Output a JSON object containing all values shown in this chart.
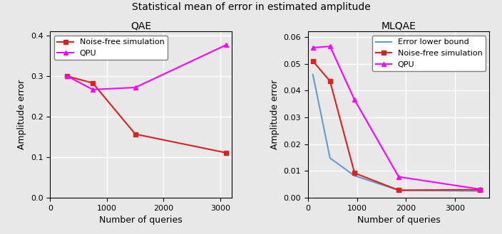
{
  "suptitle": "Statistical mean of error in estimated amplitude",
  "suptitle_fontsize": 10,
  "qae": {
    "title": "QAE",
    "xlabel": "Number of queries",
    "ylabel": "Amplitude error",
    "ylim": [
      0,
      0.41
    ],
    "xlim": [
      0,
      3200
    ],
    "yticks": [
      0.0,
      0.1,
      0.2,
      0.3,
      0.4
    ],
    "xticks": [
      0,
      1000,
      2000,
      3000
    ],
    "noise_free": {
      "x": [
        300,
        750,
        1500,
        3100
      ],
      "y": [
        0.3,
        0.283,
        0.157,
        0.111
      ],
      "color": "#dd2020",
      "marker": "s",
      "label": "Noise-free simulation"
    },
    "qpu": {
      "x": [
        300,
        750,
        1500,
        3100
      ],
      "y": [
        0.3,
        0.267,
        0.272,
        0.377
      ],
      "color": "#ff00ff",
      "marker": "^",
      "label": "QPU"
    }
  },
  "mlqae": {
    "title": "MLQAE",
    "xlabel": "Number of queries",
    "ylabel": "Amplitude error",
    "ylim": [
      0.0,
      0.062
    ],
    "xlim": [
      0,
      3700
    ],
    "yticks": [
      0.0,
      0.01,
      0.02,
      0.03,
      0.04,
      0.05,
      0.06
    ],
    "xticks": [
      0,
      1000,
      2000,
      3000
    ],
    "error_lb": {
      "x": [
        100,
        450,
        950,
        1850,
        3500
      ],
      "y": [
        0.046,
        0.0148,
        0.0082,
        0.0028,
        0.0025
      ],
      "color": "#6699cc",
      "label": "Error lower bound"
    },
    "noise_free": {
      "x": [
        100,
        450,
        950,
        1850,
        3500
      ],
      "y": [
        0.051,
        0.0435,
        0.0092,
        0.0028,
        0.003
      ],
      "color": "#dd2020",
      "marker": "s",
      "label": "Noise-free simulation"
    },
    "qpu": {
      "x": [
        100,
        450,
        950,
        1850,
        3500
      ],
      "y": [
        0.056,
        0.0565,
        0.0365,
        0.0078,
        0.0032
      ],
      "color": "#ff00ff",
      "marker": "^",
      "label": "QPU"
    }
  },
  "background_color": "#e8e8e8",
  "plot_bg_color": "#e8e8e8",
  "grid_color": "#ffffff",
  "grid_lw": 1.0
}
